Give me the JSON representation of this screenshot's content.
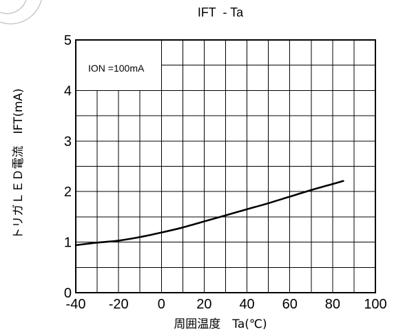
{
  "chart_data": {
    "type": "line",
    "title": "IFT  - Ta",
    "xlabel": "周囲温度　Ta(℃)",
    "ylabel": "トリガＬＥＤ電流　IFT(mA)",
    "xlim": [
      -40,
      100
    ],
    "ylim": [
      0,
      5
    ],
    "x_ticks": [
      "-40",
      "-20",
      "0",
      "20",
      "40",
      "60",
      "80",
      "100"
    ],
    "y_ticks": [
      "0",
      "1",
      "2",
      "3",
      "4",
      "5"
    ],
    "grid": true,
    "annotation": "ION =100mA",
    "annotation_placement": "top-left",
    "series": [
      {
        "x": [
          -40,
          -30,
          -20,
          -10,
          0,
          10,
          20,
          30,
          40,
          50,
          60,
          70,
          80,
          85
        ],
        "y": [
          0.94,
          0.99,
          1.03,
          1.1,
          1.19,
          1.29,
          1.41,
          1.53,
          1.65,
          1.77,
          1.9,
          2.03,
          2.15,
          2.21
        ]
      }
    ],
    "colors": {
      "line": "#000000",
      "grid": "#000000",
      "background": "#ffffff"
    }
  }
}
